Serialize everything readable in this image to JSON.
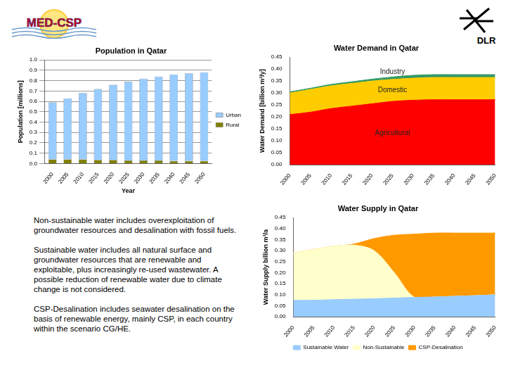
{
  "logos": {
    "left": "MED-CSP",
    "right": "DLR"
  },
  "chart_data": [
    {
      "type": "bar",
      "title": "Population in Qatar",
      "x_label": "Year",
      "y_label": "Population [millions]",
      "stacked": true,
      "grid": true,
      "legend": "right",
      "categories": [
        "2000",
        "2005",
        "2010",
        "2015",
        "2020",
        "2025",
        "2030",
        "2035",
        "2040",
        "2045",
        "2050"
      ],
      "series": [
        {
          "name": "Urban",
          "color": "#99ccff",
          "values": [
            0.55,
            0.59,
            0.64,
            0.685,
            0.725,
            0.76,
            0.79,
            0.81,
            0.835,
            0.845,
            0.855
          ]
        },
        {
          "name": "Rural",
          "color": "#808000",
          "values": [
            0.04,
            0.04,
            0.04,
            0.035,
            0.035,
            0.03,
            0.03,
            0.03,
            0.025,
            0.025,
            0.025
          ]
        }
      ],
      "ylim": [
        0,
        1
      ],
      "yticks": [
        {
          "value": 0,
          "label": "0.0"
        },
        0.1,
        0.2,
        0.3,
        0.4,
        0.5,
        0.6,
        0.7,
        0.8,
        0.9,
        {
          "value": 1,
          "label": "1.0"
        }
      ]
    },
    {
      "type": "area",
      "title": "Water Demand in Qatar",
      "y_label": "Water Demand [billion m³/y]",
      "stacked": true,
      "grid": false,
      "categories": [
        "2000",
        "2005",
        "2010",
        "2015",
        "2020",
        "2025",
        "2030",
        "2035",
        "2040",
        "2045",
        "2050"
      ],
      "series": [
        {
          "name": "Agricultural",
          "color": "#ff0000",
          "values": [
            0.21,
            0.22,
            0.235,
            0.245,
            0.255,
            0.265,
            0.27,
            0.272,
            0.272,
            0.272,
            0.272
          ]
        },
        {
          "name": "Domestic",
          "color": "#ffcc00",
          "values": [
            0.09,
            0.095,
            0.095,
            0.095,
            0.095,
            0.092,
            0.092,
            0.093,
            0.093,
            0.093,
            0.093
          ]
        },
        {
          "name": "Industry",
          "color": "#339966",
          "values": [
            0.005,
            0.005,
            0.006,
            0.007,
            0.008,
            0.01,
            0.012,
            0.012,
            0.012,
            0.012,
            0.012
          ]
        }
      ],
      "ylim": [
        0,
        0.45
      ],
      "yticks": [
        {
          "value": 0,
          "label": "0.00"
        },
        {
          "value": 0.05,
          "label": "0.05"
        },
        {
          "value": 0.1,
          "label": "0.10"
        },
        {
          "value": 0.15,
          "label": "0.15"
        },
        {
          "value": 0.2,
          "label": "0.20"
        },
        {
          "value": 0.25,
          "label": "0.25"
        },
        {
          "value": 0.3,
          "label": "0.30"
        },
        {
          "value": 0.35,
          "label": "0.35"
        },
        {
          "value": 0.4,
          "label": "0.40"
        },
        {
          "value": 0.45,
          "label": "0.45"
        }
      ]
    },
    {
      "type": "area",
      "title": "Water Supply in Qatar",
      "y_label": "Water Supply billion m³/a",
      "stacked": true,
      "grid": false,
      "legend": "bottom",
      "categories": [
        "2000",
        "2005",
        "2010",
        "2015",
        "2020",
        "2025",
        "2030",
        "2035",
        "2040",
        "2045",
        "2050"
      ],
      "series": [
        {
          "name": "Sustainable Water",
          "color": "#99ccff",
          "values": [
            0.075,
            0.075,
            0.078,
            0.08,
            0.082,
            0.085,
            0.088,
            0.09,
            0.093,
            0.096,
            0.1
          ]
        },
        {
          "name": "Non-Sustainable",
          "color": "#ffffcc",
          "values": [
            0.215,
            0.23,
            0.242,
            0.245,
            0.218,
            0.115,
            0,
            0,
            0,
            0,
            0
          ]
        },
        {
          "name": "CSP-Desalination",
          "color": "#ff9900",
          "values": [
            0,
            0,
            0,
            0.005,
            0.055,
            0.17,
            0.287,
            0.29,
            0.287,
            0.284,
            0.28
          ]
        }
      ],
      "ylim": [
        0,
        0.45
      ],
      "yticks": [
        {
          "value": 0,
          "label": "0.00"
        },
        {
          "value": 0.05,
          "label": "0.05"
        },
        {
          "value": 0.1,
          "label": "0.10"
        },
        {
          "value": 0.15,
          "label": "0.15"
        },
        {
          "value": 0.2,
          "label": "0.20"
        },
        {
          "value": 0.25,
          "label": "0.25"
        },
        {
          "value": 0.3,
          "label": "0.30"
        },
        {
          "value": 0.35,
          "label": "0.35"
        },
        {
          "value": 0.4,
          "label": "0.40"
        },
        {
          "value": 0.45,
          "label": "0.45"
        }
      ]
    }
  ],
  "text": [
    "Non-sustainable water includes overexploitation of groundwater resources and desalination with fossil fuels.",
    "Sustainable water includes all natural surface and groundwater resources that are renewable and exploitable, plus increasingly re-used wastewater. A possible reduction of renewable water due to climate change is not considered.",
    "CSP-Desalination includes seawater desalination on the basis of renewable energy, mainly CSP, in each country within the scenario CG/HE."
  ]
}
